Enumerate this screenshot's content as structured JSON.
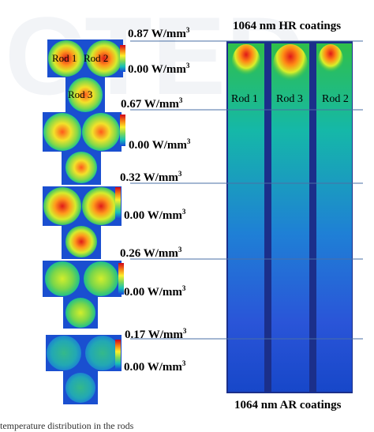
{
  "figure": {
    "watermark": "CTED",
    "top_label": "1064 nm HR coatings",
    "bottom_label": "1064 nm AR coatings",
    "rod_labels_cross": [
      "Rod 1",
      "Rod 2",
      "Rod 3"
    ],
    "rod_labels_long": [
      "Rod 1",
      "Rod 3",
      "Rod 2"
    ],
    "scales": [
      {
        "max": "0.87 W/mm",
        "min": "0.00 W/mm",
        "exp": "3"
      },
      {
        "max": "0.67 W/mm",
        "min": "0.00 W/mm",
        "exp": "3"
      },
      {
        "max": "0.32 W/mm",
        "min": "0.00 W/mm",
        "exp": "3"
      },
      {
        "max": "0.26 W/mm",
        "min": "0.00 W/mm",
        "exp": "3"
      },
      {
        "max": "0.17 W/mm",
        "min": "0.00 W/mm",
        "exp": "3"
      }
    ],
    "caption": "temperature distribution in the rods",
    "colormap": [
      "#d0021b",
      "#f57d15",
      "#fcef2b",
      "#7ed957",
      "#16c0b7",
      "#1646d8"
    ]
  }
}
